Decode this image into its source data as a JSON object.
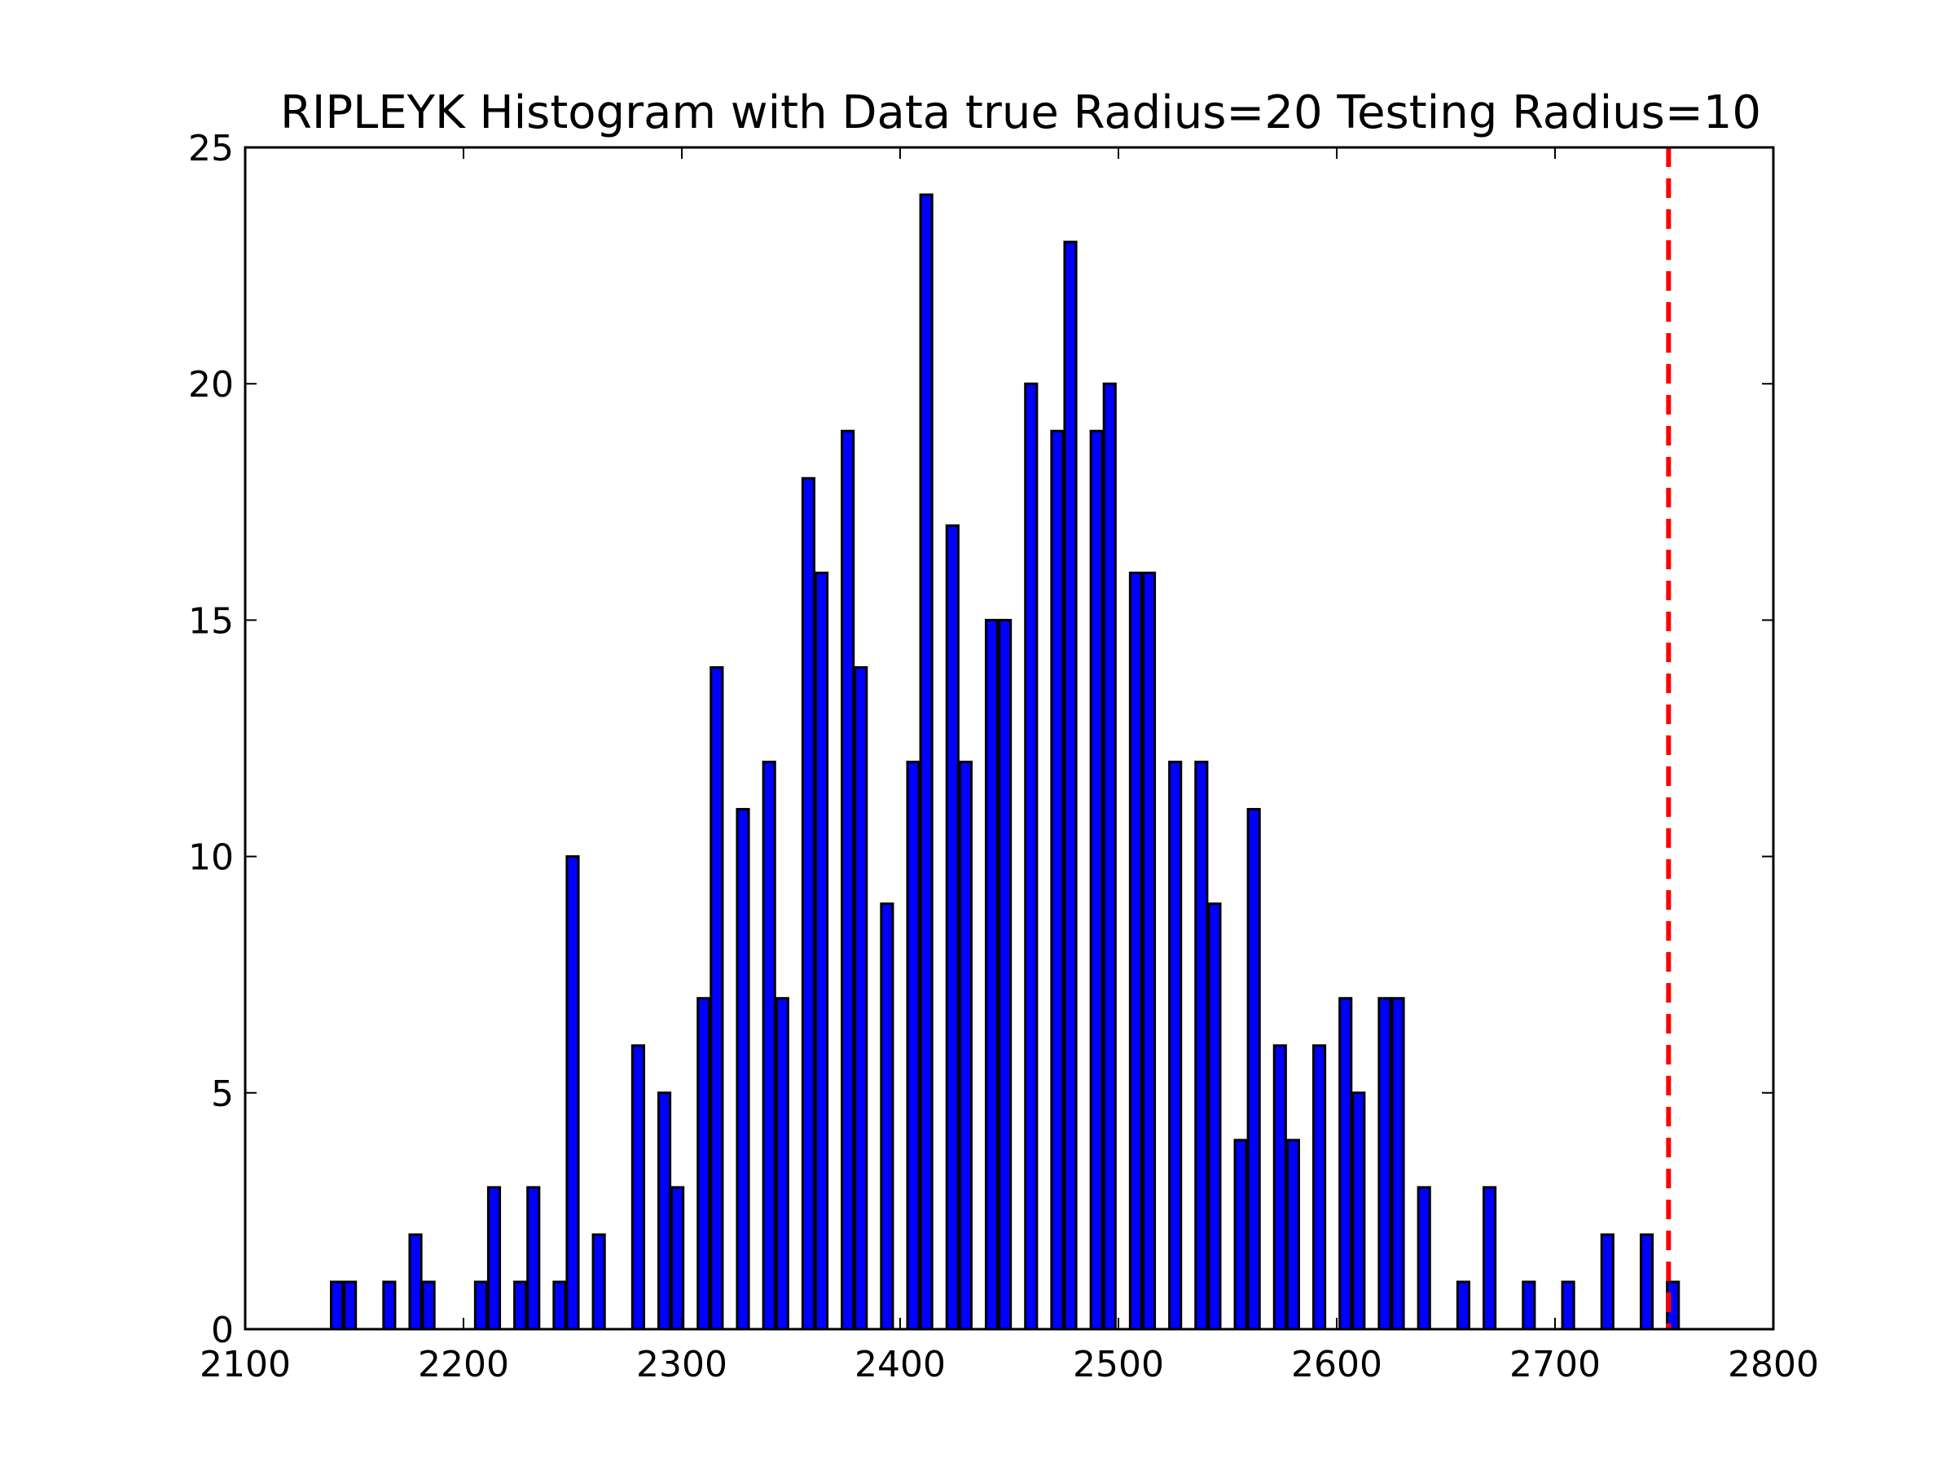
{
  "chart_data": {
    "type": "bar",
    "title": "RIPLEYK Histogram with Data true Radius=20 Testing Radius=10",
    "xlabel": "",
    "ylabel": "",
    "xlim": [
      2100,
      2800
    ],
    "ylim": [
      0,
      25
    ],
    "x_ticks": [
      "2100",
      "2200",
      "2300",
      "2400",
      "2500",
      "2600",
      "2700",
      "2800"
    ],
    "y_ticks": [
      "0",
      "5",
      "10",
      "15",
      "20",
      "25"
    ],
    "grid": false,
    "bar_color": "#0000ff",
    "bar_edge_color": "#000000",
    "bin_width": 6,
    "bars": [
      {
        "x": 2142,
        "value": 1
      },
      {
        "x": 2148,
        "value": 1
      },
      {
        "x": 2166,
        "value": 1
      },
      {
        "x": 2178,
        "value": 2
      },
      {
        "x": 2184,
        "value": 1
      },
      {
        "x": 2208,
        "value": 1
      },
      {
        "x": 2214,
        "value": 3
      },
      {
        "x": 2226,
        "value": 1
      },
      {
        "x": 2232,
        "value": 3
      },
      {
        "x": 2244,
        "value": 1
      },
      {
        "x": 2250,
        "value": 10
      },
      {
        "x": 2262,
        "value": 2
      },
      {
        "x": 2280,
        "value": 6
      },
      {
        "x": 2292,
        "value": 5
      },
      {
        "x": 2298,
        "value": 3
      },
      {
        "x": 2310,
        "value": 7
      },
      {
        "x": 2316,
        "value": 14
      },
      {
        "x": 2328,
        "value": 11
      },
      {
        "x": 2340,
        "value": 12
      },
      {
        "x": 2346,
        "value": 7
      },
      {
        "x": 2358,
        "value": 18
      },
      {
        "x": 2364,
        "value": 16
      },
      {
        "x": 2376,
        "value": 19
      },
      {
        "x": 2382,
        "value": 14
      },
      {
        "x": 2394,
        "value": 9
      },
      {
        "x": 2406,
        "value": 12
      },
      {
        "x": 2412,
        "value": 24
      },
      {
        "x": 2424,
        "value": 17
      },
      {
        "x": 2430,
        "value": 12
      },
      {
        "x": 2442,
        "value": 15
      },
      {
        "x": 2448,
        "value": 15
      },
      {
        "x": 2460,
        "value": 20
      },
      {
        "x": 2472,
        "value": 19
      },
      {
        "x": 2478,
        "value": 23
      },
      {
        "x": 2490,
        "value": 19
      },
      {
        "x": 2496,
        "value": 20
      },
      {
        "x": 2508,
        "value": 16
      },
      {
        "x": 2514,
        "value": 16
      },
      {
        "x": 2526,
        "value": 12
      },
      {
        "x": 2538,
        "value": 12
      },
      {
        "x": 2544,
        "value": 9
      },
      {
        "x": 2556,
        "value": 4
      },
      {
        "x": 2562,
        "value": 11
      },
      {
        "x": 2574,
        "value": 6
      },
      {
        "x": 2580,
        "value": 4
      },
      {
        "x": 2592,
        "value": 6
      },
      {
        "x": 2604,
        "value": 7
      },
      {
        "x": 2610,
        "value": 5
      },
      {
        "x": 2622,
        "value": 7
      },
      {
        "x": 2628,
        "value": 7
      },
      {
        "x": 2640,
        "value": 3
      },
      {
        "x": 2658,
        "value": 1
      },
      {
        "x": 2670,
        "value": 3
      },
      {
        "x": 2688,
        "value": 1
      },
      {
        "x": 2706,
        "value": 1
      },
      {
        "x": 2724,
        "value": 2
      },
      {
        "x": 2742,
        "value": 2
      },
      {
        "x": 2754,
        "value": 1
      }
    ],
    "reference_line": {
      "x": 2752,
      "style": "dashed",
      "color": "#ff0000"
    }
  }
}
